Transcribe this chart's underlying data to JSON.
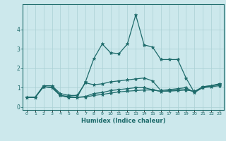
{
  "xlabel": "Humidex (Indice chaleur)",
  "ylabel": "",
  "xlim": [
    -0.5,
    23.5
  ],
  "ylim": [
    -0.15,
    5.3
  ],
  "yticks": [
    0,
    1,
    2,
    3,
    4
  ],
  "xticks": [
    0,
    1,
    2,
    3,
    4,
    5,
    6,
    7,
    8,
    9,
    10,
    11,
    12,
    13,
    14,
    15,
    16,
    17,
    18,
    19,
    20,
    21,
    22,
    23
  ],
  "bg_color": "#cce8ec",
  "line_color": "#1e6b6b",
  "grid_color": "#aad0d4",
  "series": [
    {
      "x": [
        0,
        1,
        2,
        3,
        4,
        5,
        6,
        7,
        8,
        9,
        10,
        11,
        12,
        13,
        14,
        15,
        16,
        17,
        18,
        19,
        20,
        21,
        22,
        23
      ],
      "y": [
        0.5,
        0.5,
        1.1,
        1.1,
        0.6,
        0.5,
        0.5,
        1.3,
        2.5,
        3.25,
        2.8,
        2.75,
        3.25,
        4.75,
        3.2,
        3.1,
        2.45,
        2.45,
        2.45,
        1.5,
        0.75,
        1.0,
        1.1,
        1.2
      ]
    },
    {
      "x": [
        0,
        1,
        2,
        3,
        4,
        5,
        6,
        7,
        8,
        9,
        10,
        11,
        12,
        13,
        14,
        15,
        16,
        17,
        18,
        19,
        20,
        21,
        22,
        23
      ],
      "y": [
        0.5,
        0.5,
        1.1,
        1.1,
        0.7,
        0.6,
        0.6,
        1.25,
        1.15,
        1.2,
        1.3,
        1.35,
        1.4,
        1.45,
        1.5,
        1.35,
        0.85,
        0.9,
        0.95,
        1.0,
        0.75,
        1.05,
        1.1,
        1.2
      ]
    },
    {
      "x": [
        0,
        1,
        2,
        3,
        4,
        5,
        6,
        7,
        8,
        9,
        10,
        11,
        12,
        13,
        14,
        15,
        16,
        17,
        18,
        19,
        20,
        21,
        22,
        23
      ],
      "y": [
        0.5,
        0.5,
        1.05,
        1.0,
        0.6,
        0.55,
        0.5,
        0.55,
        0.7,
        0.75,
        0.85,
        0.9,
        0.95,
        1.0,
        1.0,
        0.9,
        0.8,
        0.85,
        0.88,
        0.9,
        0.8,
        1.05,
        1.1,
        1.15
      ]
    },
    {
      "x": [
        0,
        1,
        2,
        3,
        4,
        5,
        6,
        7,
        8,
        9,
        10,
        11,
        12,
        13,
        14,
        15,
        16,
        17,
        18,
        19,
        20,
        21,
        22,
        23
      ],
      "y": [
        0.5,
        0.5,
        1.05,
        1.0,
        0.6,
        0.5,
        0.5,
        0.52,
        0.6,
        0.65,
        0.72,
        0.78,
        0.82,
        0.85,
        0.88,
        0.88,
        0.82,
        0.82,
        0.85,
        0.88,
        0.82,
        1.0,
        1.05,
        1.1
      ]
    }
  ]
}
